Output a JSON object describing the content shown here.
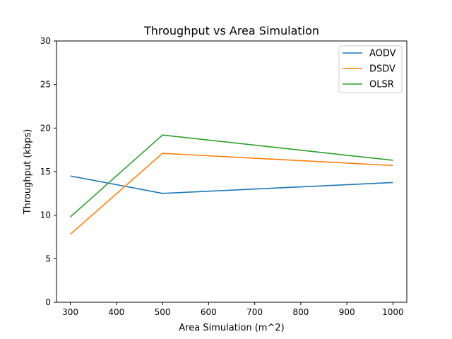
{
  "chart_data": {
    "type": "line",
    "title": "Throughput vs Area Simulation",
    "xlabel": "Area Simulation (m^2)",
    "ylabel": "Throughput (kbps)",
    "x": [
      300,
      500,
      1000
    ],
    "xlim": [
      270,
      1030
    ],
    "ylim": [
      0,
      30
    ],
    "xticks": [
      300,
      400,
      500,
      600,
      700,
      800,
      900,
      1000
    ],
    "yticks": [
      0,
      5,
      10,
      15,
      20,
      25,
      30
    ],
    "grid": false,
    "legend_position": "top-right",
    "series": [
      {
        "name": "AODV",
        "color": "#1f77b4",
        "values": [
          14.5,
          12.5,
          13.75
        ]
      },
      {
        "name": "DSDV",
        "color": "#ff7f0e",
        "values": [
          7.8,
          17.1,
          15.7
        ]
      },
      {
        "name": "OLSR",
        "color": "#2ca02c",
        "values": [
          9.8,
          19.2,
          16.3
        ]
      }
    ]
  }
}
